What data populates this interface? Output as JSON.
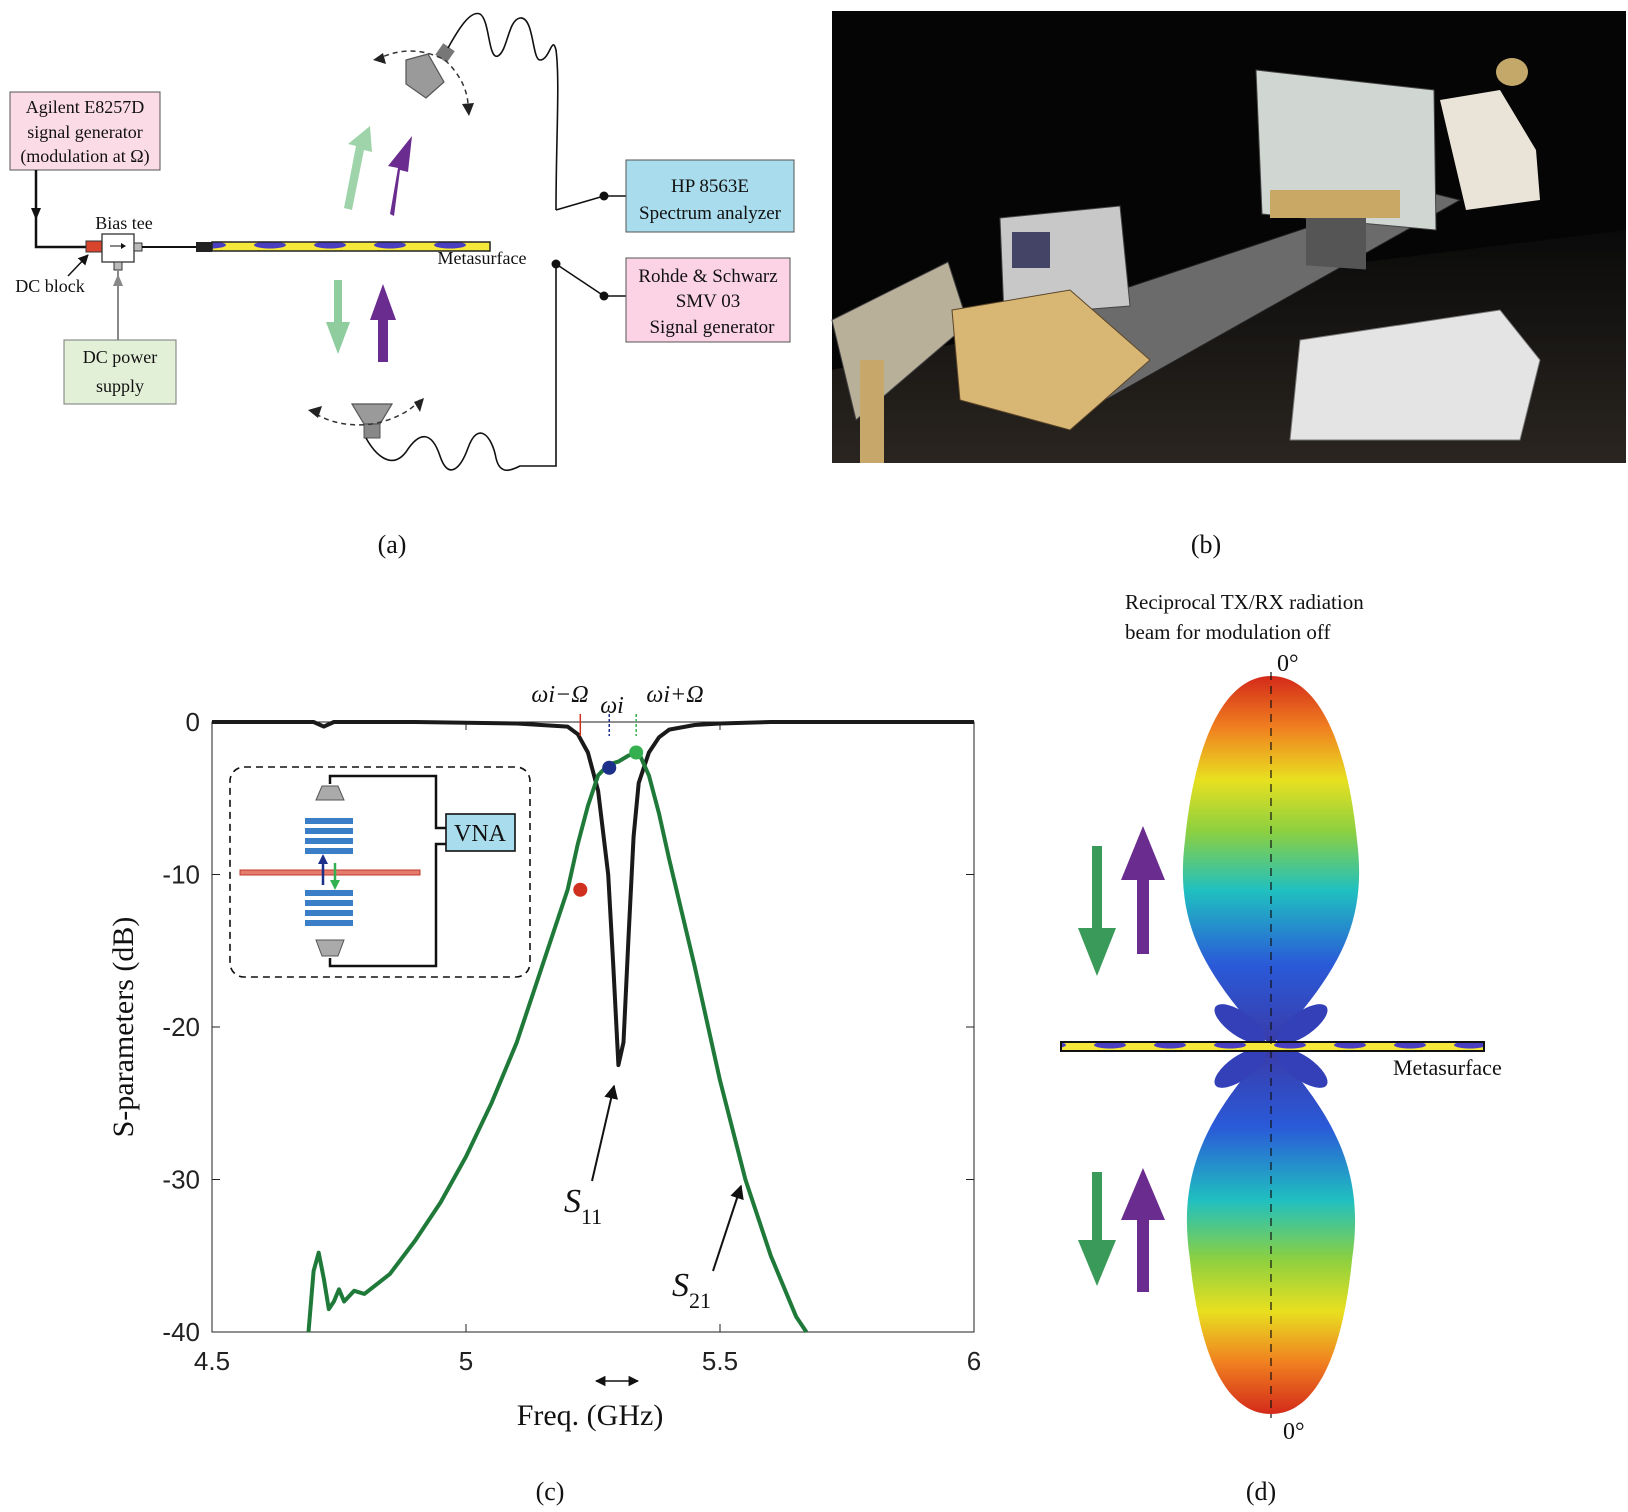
{
  "panel_labels": {
    "a": "(a)",
    "b": "(b)",
    "c": "(c)",
    "d": "(d)"
  },
  "setup_a": {
    "agilent_lines": [
      "Agilent E8257D",
      "signal generator",
      "(modulation at Ω)"
    ],
    "bias_tee": "Bias tee",
    "dc_block": "DC block",
    "dc_supply_lines": [
      "DC power",
      "supply"
    ],
    "metasurface": "Metasurface",
    "hp_lines": [
      "HP 8563E",
      "Spectrum analyzer"
    ],
    "rs_lines": [
      "Rohde & Schwarz",
      "SMV 03",
      "Signal generator"
    ],
    "colors": {
      "agilent_box": "#fbdbe6",
      "dc_box": "#e3f0d8",
      "hp_box": "#a9dcec",
      "rs_box": "#fbd3e5",
      "purple": "#6a2d8f",
      "green": "#7fbf90"
    }
  },
  "photo_b": {
    "icon": "lab-photo-setup"
  },
  "chart_data": {
    "type": "line",
    "xlabel": "Freq. (GHz)",
    "ylabel": "S-parameters (dB)",
    "xlim": [
      4.5,
      6
    ],
    "ylim": [
      -40,
      0
    ],
    "xticks": [
      4.5,
      5,
      5.5,
      6
    ],
    "xtick_labels": [
      "4.5",
      "5",
      "5.5",
      "6"
    ],
    "yticks": [
      0,
      -10,
      -20,
      -30,
      -40
    ],
    "ytick_labels": [
      "0",
      "-10",
      "-20",
      "-30",
      "-40"
    ],
    "grid": false,
    "series": [
      {
        "name": "S11",
        "color": "#1a1a1a",
        "x": [
          4.5,
          4.7,
          4.72,
          4.74,
          4.9,
          5.1,
          5.2,
          5.22,
          5.24,
          5.26,
          5.28,
          5.29,
          5.3,
          5.31,
          5.32,
          5.33,
          5.34,
          5.36,
          5.38,
          5.4,
          5.45,
          5.5,
          5.6,
          5.8,
          6.0
        ],
        "values": [
          0,
          0,
          -0.3,
          0,
          0,
          -0.1,
          -0.3,
          -0.8,
          -2.0,
          -4.5,
          -10.0,
          -16.0,
          -22.5,
          -21.0,
          -14.0,
          -7.5,
          -4.0,
          -2.0,
          -1.0,
          -0.5,
          -0.2,
          -0.1,
          0,
          0,
          0
        ]
      },
      {
        "name": "S21",
        "color": "#1f7a3a",
        "x": [
          4.69,
          4.7,
          4.71,
          4.72,
          4.73,
          4.74,
          4.75,
          4.76,
          4.78,
          4.8,
          4.85,
          4.9,
          4.95,
          5.0,
          5.05,
          5.1,
          5.15,
          5.2,
          5.22,
          5.24,
          5.26,
          5.28,
          5.3,
          5.32,
          5.34,
          5.36,
          5.38,
          5.4,
          5.45,
          5.5,
          5.55,
          5.6,
          5.65,
          5.67
        ],
        "values": [
          -40.0,
          -36.0,
          -34.8,
          -36.5,
          -38.5,
          -38.0,
          -37.2,
          -38.0,
          -37.3,
          -37.5,
          -36.2,
          -34.0,
          -31.5,
          -28.5,
          -25.0,
          -21.0,
          -16.0,
          -11.0,
          -8.0,
          -5.5,
          -3.5,
          -2.8,
          -2.6,
          -2.2,
          -2.0,
          -3.5,
          -6.0,
          -9.0,
          -16.0,
          -23.5,
          -30.0,
          -35.0,
          -39.0,
          -40.0
        ]
      }
    ],
    "markers": [
      {
        "x": 5.225,
        "y": -11,
        "color": "#d03020"
      },
      {
        "x": 5.282,
        "y": -3,
        "color": "#1c2f8a"
      },
      {
        "x": 5.335,
        "y": -2,
        "color": "#34b050"
      }
    ],
    "top_annotations": [
      "ωi−Ω",
      "ωi",
      "ωi+Ω"
    ],
    "curve_labels": [
      "S11",
      "S21"
    ],
    "inset_label": "VNA",
    "series_label_parts": {
      "s11": [
        "S",
        "11"
      ],
      "s21": [
        "S",
        "21"
      ]
    }
  },
  "pattern_d": {
    "title_lines": [
      "Reciprocal TX/RX radiation",
      "beam for modulation off"
    ],
    "angle_top": "0°",
    "angle_bottom": "0°",
    "metasurface": "Metasurface",
    "gradient": [
      "#d42a1a",
      "#f08020",
      "#e8e020",
      "#8cd040",
      "#20c0c0",
      "#2a5ad8",
      "#3a3aa8"
    ]
  }
}
